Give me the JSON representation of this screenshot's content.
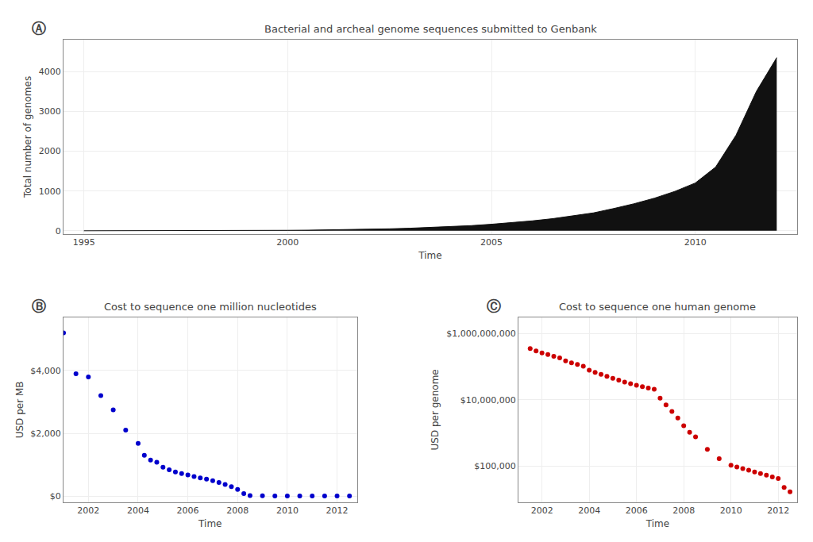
{
  "chart_data": [
    {
      "type": "area",
      "title": "Bacterial and archeal genome sequences submitted to Genbank",
      "xlabel": "Time",
      "ylabel": "Total number of genomes",
      "annotations": [
        "Ⓐ"
      ],
      "x": [
        1995.0,
        1995.5,
        1996.0,
        1996.5,
        1997.0,
        1997.5,
        1998.0,
        1998.5,
        1999.0,
        1999.5,
        2000.0,
        2000.5,
        2001.0,
        2001.5,
        2002.0,
        2002.5,
        2003.0,
        2003.5,
        2004.0,
        2004.5,
        2005.0,
        2005.5,
        2006.0,
        2006.5,
        2007.0,
        2007.5,
        2008.0,
        2008.5,
        2009.0,
        2009.5,
        2010.0,
        2010.5,
        2011.0,
        2011.5,
        2012.0
      ],
      "values": [
        1,
        1,
        2,
        2,
        3,
        3,
        4,
        5,
        6,
        8,
        12,
        16,
        22,
        28,
        38,
        50,
        65,
        82,
        105,
        130,
        165,
        200,
        250,
        305,
        370,
        450,
        560,
        680,
        820,
        990,
        1200,
        1600,
        2400,
        3500,
        4350
      ],
      "color": "#111111",
      "xlim": [
        1994.5,
        2012.5
      ],
      "ylim": [
        -80,
        4800
      ],
      "xticks": [
        1995,
        2000,
        2005,
        2010
      ],
      "yticks": [
        0,
        1000,
        2000,
        3000,
        4000
      ],
      "grid": true
    },
    {
      "type": "scatter",
      "title": "Cost to sequence one million nucleotides",
      "xlabel": "Time",
      "ylabel": "USD per MB",
      "annotations": [
        "Ⓑ"
      ],
      "x": [
        2001.0,
        2001.5,
        2002.0,
        2002.5,
        2003.0,
        2003.5,
        2004.0,
        2004.25,
        2004.5,
        2004.75,
        2005.0,
        2005.25,
        2005.5,
        2005.75,
        2006.0,
        2006.25,
        2006.5,
        2006.75,
        2007.0,
        2007.25,
        2007.5,
        2007.75,
        2008.0,
        2008.25,
        2008.5,
        2009.0,
        2009.5,
        2010.0,
        2010.5,
        2011.0,
        2011.5,
        2012.0,
        2012.5
      ],
      "values": [
        5200,
        3900,
        3800,
        3200,
        2750,
        2100,
        1680,
        1300,
        1150,
        1080,
        920,
        840,
        770,
        720,
        670,
        620,
        580,
        540,
        490,
        430,
        370,
        300,
        210,
        80,
        15,
        8,
        4,
        3,
        2,
        2,
        1,
        1,
        2
      ],
      "color": "#0000cc",
      "xlim": [
        2001.0,
        2012.8
      ],
      "ylim": [
        -200,
        5700
      ],
      "xticks": [
        2002,
        2004,
        2006,
        2008,
        2010,
        2012
      ],
      "yticks": [
        {
          "value": 0,
          "label": "$0"
        },
        {
          "value": 2000,
          "label": "$2,000"
        },
        {
          "value": 4000,
          "label": "$4,000"
        }
      ],
      "grid": true
    },
    {
      "type": "scatter",
      "title": "Cost to sequence one human genome",
      "xlabel": "Time",
      "ylabel": "USD per genome",
      "annotations": [
        "Ⓒ"
      ],
      "log": "y",
      "x": [
        2001.5,
        2001.75,
        2002.0,
        2002.25,
        2002.5,
        2002.75,
        2003.0,
        2003.25,
        2003.5,
        2003.75,
        2004.0,
        2004.25,
        2004.5,
        2004.75,
        2005.0,
        2005.25,
        2005.5,
        2005.75,
        2006.0,
        2006.25,
        2006.5,
        2006.75,
        2007.0,
        2007.25,
        2007.5,
        2007.75,
        2008.0,
        2008.25,
        2008.5,
        2009.0,
        2009.5,
        2010.0,
        2010.25,
        2010.5,
        2010.75,
        2011.0,
        2011.25,
        2011.5,
        2011.75,
        2012.0,
        2012.25,
        2012.5
      ],
      "values": [
        354813400,
        301995200,
        263026800,
        234422900,
        208929600,
        186208700,
        151356100,
        131825700,
        117489800,
        104712900,
        79432820,
        67608300,
        58884370,
        51286140,
        44668360,
        39810720,
        34673690,
        30902950,
        27542290,
        25118860,
        22908680,
        20892960,
        11220180,
        7079458,
        4466836,
        2818383,
        1659587,
        1047129,
        758577.6,
        316227.8,
        165958.7,
        104712.9,
        93325.43,
        83176.38,
        74131.02,
        66069.34,
        58884.37,
        52480.75,
        46773.51,
        41686.94,
        22387.21,
        16595.87
      ],
      "color": "#cc0000",
      "xlim": [
        2001.0,
        2012.8
      ],
      "ylim": [
        7943.282347,
        3162277660.168
      ],
      "xticks": [
        2002,
        2004,
        2006,
        2008,
        2010,
        2012
      ],
      "yticks": [
        {
          "value": 100000,
          "label": "$100,000"
        },
        {
          "value": 10000000,
          "label": "$10,000,000"
        },
        {
          "value": 1000000000,
          "label": "$1,000,000,000"
        }
      ],
      "grid": true
    }
  ]
}
